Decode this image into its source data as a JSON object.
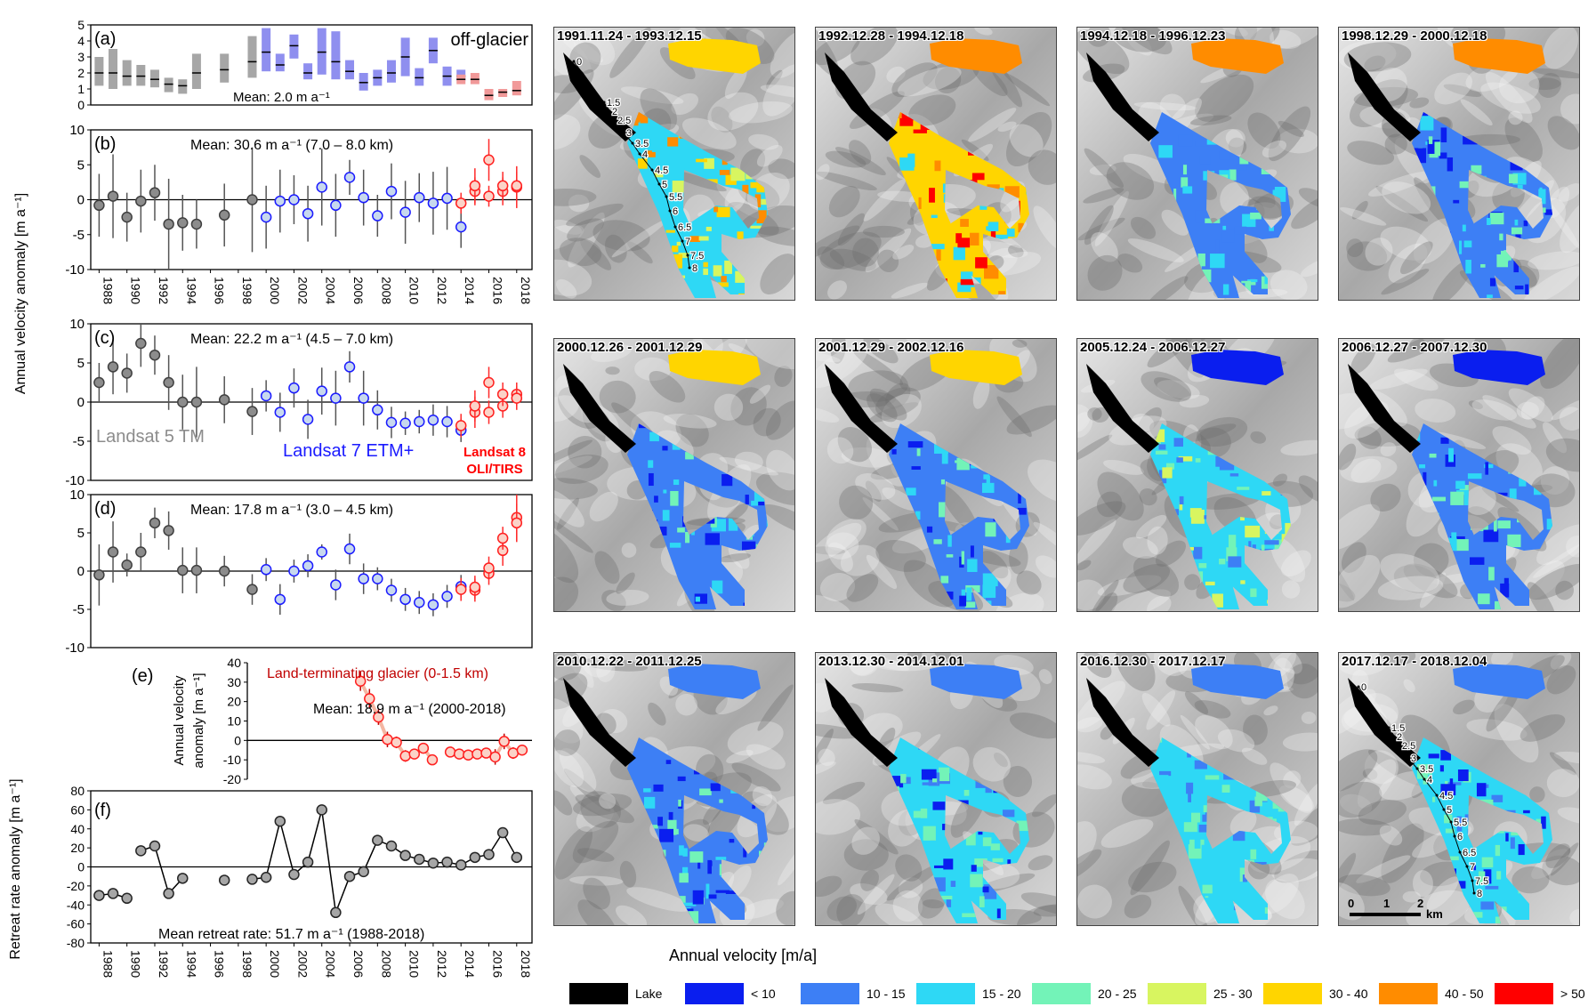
{
  "panels": [
    {
      "id": "a",
      "label": "(a)",
      "annotation": "off-glacier",
      "mean_text": "Mean: 2.0 m a⁻¹",
      "chart_data": {
        "type": "box",
        "yticks": [
          "5",
          "4",
          "3",
          "2",
          "1",
          "0"
        ],
        "ylim": [
          0,
          5
        ],
        "series": [
          {
            "name": "Landsat 5 TM",
            "color": "#a6a6a6",
            "x": [
              1988,
              1989,
              1990,
              1991,
              1992,
              1993,
              1994,
              1995,
              1997,
              1999
            ],
            "low": [
              1.2,
              1.0,
              1.2,
              1.2,
              1.1,
              0.8,
              0.7,
              1.0,
              1.4,
              1.7
            ],
            "high": [
              3.0,
              3.5,
              2.8,
              2.5,
              2.2,
              1.7,
              1.6,
              3.2,
              3.2,
              4.3
            ],
            "mid": [
              2.0,
              2.0,
              1.8,
              1.8,
              1.6,
              1.3,
              1.2,
              2.0,
              2.2,
              2.7
            ]
          },
          {
            "name": "Landsat 7 ETM+",
            "color": "#8f8fef",
            "x": [
              2000,
              2001,
              2002,
              2003,
              2004,
              2005,
              2006,
              2007,
              2008,
              2009,
              2010,
              2011,
              2012,
              2013,
              2014
            ],
            "low": [
              2.1,
              2.1,
              2.9,
              1.6,
              1.9,
              1.6,
              1.6,
              0.9,
              1.2,
              1.4,
              1.8,
              1.2,
              2.6,
              1.2,
              1.5
            ],
            "high": [
              4.8,
              3.2,
              4.4,
              2.6,
              4.8,
              4.6,
              2.8,
              2.0,
              2.2,
              2.8,
              4.2,
              2.3,
              4.2,
              2.4,
              2.2
            ],
            "mid": [
              3.3,
              2.5,
              3.7,
              2.0,
              3.3,
              2.7,
              2.1,
              1.4,
              1.7,
              2.0,
              3.0,
              1.7,
              3.4,
              1.8,
              1.8
            ]
          },
          {
            "name": "Landsat 8 OLI/TIRS",
            "color": "#f19999",
            "x": [
              2014,
              2015,
              2016,
              2017,
              2018
            ],
            "low": [
              1.3,
              1.3,
              0.3,
              0.5,
              0.6
            ],
            "high": [
              1.9,
              2.0,
              1.0,
              1.0,
              1.5
            ],
            "mid": [
              1.6,
              1.6,
              0.6,
              0.8,
              0.9
            ]
          }
        ]
      }
    },
    {
      "id": "b",
      "label": "(b)",
      "mean_text": "Mean: 30.6 m a⁻¹ (7.0 – 8.0 km)",
      "chart_data": {
        "type": "scatter",
        "yticks": [
          "10",
          "5",
          "0",
          "-5",
          "-10"
        ],
        "ylim": [
          -10,
          10
        ],
        "xticks": [
          "1988",
          "1990",
          "1992",
          "1994",
          "1996",
          "1998",
          "2000",
          "2002",
          "2004",
          "2006",
          "2008",
          "2010",
          "2012",
          "2014",
          "2016",
          "2018"
        ],
        "series": [
          {
            "name": "Landsat 5 TM",
            "color": "#808080",
            "x": [
              1988,
              1989,
              1990,
              1991,
              1992,
              1993,
              1994,
              1995,
              1997,
              1999
            ],
            "y": [
              -0.8,
              0.5,
              -2.5,
              -0.2,
              1.0,
              -3.5,
              -3.3,
              -3.5,
              -2.2,
              0.0
            ],
            "err": [
              4.5,
              6.0,
              3.5,
              4.5,
              4.0,
              6.5,
              4.0,
              3.5,
              4.5,
              7.5
            ]
          },
          {
            "name": "Landsat 7 ETM+",
            "color": "#9dc3e6",
            "x": [
              2000,
              2001,
              2002,
              2003,
              2004,
              2005,
              2006,
              2007,
              2008,
              2009,
              2010,
              2011,
              2012,
              2013,
              2014
            ],
            "y": [
              -2.5,
              -0.2,
              0.0,
              -2.0,
              1.8,
              -0.8,
              3.2,
              0.3,
              -2.3,
              1.2,
              -1.8,
              0.3,
              -0.5,
              0.2,
              -3.9
            ],
            "err": [
              4.5,
              4.5,
              3.5,
              4.0,
              5.5,
              4.5,
              2.5,
              4.0,
              3.0,
              4.0,
              4.5,
              3.5,
              4.5,
              4.5,
              3.0
            ]
          },
          {
            "name": "Landsat 8 OLI/TIRS",
            "color": "#ff7575",
            "x": [
              2014,
              2015,
              2016,
              2017,
              2018
            ],
            "y": [
              -0.5,
              1.2,
              0.5,
              1.2,
              1.8
            ],
            "err": [
              1.5,
              2.0,
              1.5,
              2.0,
              3.0
            ]
          },
          {
            "name": "Landsat 7 ETM+ (2015-2018)",
            "color": "#9dc3e6",
            "x": [
              2015,
              2016,
              2017,
              2018
            ],
            "y": [
              2.0,
              5.7,
              2.0,
              2.0
            ],
            "err": [
              2.5,
              3.0,
              2.0,
              2.0
            ]
          }
        ]
      }
    },
    {
      "id": "c",
      "label": "(c)",
      "mean_text": "Mean: 22.2 m a⁻¹ (4.5 – 7.0 km)",
      "sensor_labels": [
        "Landsat 5 TM",
        "Landsat 7 ETM+",
        "Landsat 8",
        "OLI/TIRS"
      ],
      "chart_data": {
        "type": "scatter",
        "yticks": [
          "10",
          "5",
          "0",
          "-5",
          "-10"
        ],
        "ylim": [
          -10,
          10
        ],
        "series": [
          {
            "name": "Landsat 5 TM",
            "color": "#808080",
            "x": [
              1988,
              1989,
              1990,
              1991,
              1992,
              1993,
              1994,
              1995,
              1997,
              1999
            ],
            "y": [
              2.5,
              4.5,
              3.7,
              7.5,
              6.0,
              2.5,
              0.0,
              0.0,
              0.3,
              -1.2
            ],
            "err": [
              2.5,
              3.5,
              2.5,
              3.0,
              2.5,
              3.5,
              3.5,
              4.5,
              3.0,
              3.0
            ]
          },
          {
            "name": "Landsat 7 ETM+",
            "color": "#9dc3e6",
            "x": [
              2000,
              2001,
              2002,
              2003,
              2004,
              2005,
              2006,
              2007,
              2008,
              2009,
              2010,
              2011,
              2012,
              2013,
              2014
            ],
            "y": [
              0.8,
              -1.3,
              1.8,
              -2.2,
              1.4,
              0.5,
              4.5,
              0.5,
              -1.0,
              -2.6,
              -2.7,
              -2.5,
              -2.3,
              -2.5,
              -3.6
            ],
            "err": [
              2.0,
              2.5,
              2.5,
              2.5,
              3.0,
              3.5,
              2.0,
              3.5,
              2.5,
              2.0,
              1.5,
              1.5,
              2.0,
              2.0,
              1.5
            ]
          },
          {
            "name": "Landsat 8 OLI/TIRS",
            "color": "#ff7575",
            "x": [
              2014,
              2015,
              2016,
              2017,
              2018
            ],
            "y": [
              -3.0,
              -1.3,
              -1.3,
              -0.5,
              1.0
            ],
            "err": [
              1.5,
              2.0,
              1.5,
              1.5,
              1.5
            ]
          },
          {
            "name": "Landsat 7 ETM+ (2015-2018)",
            "color": "#9dc3e6",
            "x": [
              2015,
              2016,
              2017,
              2018
            ],
            "y": [
              -0.5,
              2.5,
              1.0,
              0.5
            ],
            "err": [
              2.0,
              2.0,
              1.5,
              1.5
            ]
          }
        ]
      }
    },
    {
      "id": "d",
      "label": "(d)",
      "mean_text": "Mean: 17.8 m a⁻¹ (3.0 – 4.5 km)",
      "chart_data": {
        "type": "scatter",
        "yticks": [
          "10",
          "5",
          "0",
          "-5",
          "-10"
        ],
        "ylim": [
          -10,
          10
        ],
        "series": [
          {
            "name": "Landsat 5 TM",
            "color": "#808080",
            "x": [
              1988,
              1989,
              1990,
              1991,
              1992,
              1993,
              1994,
              1995,
              1997,
              1999
            ],
            "y": [
              -0.5,
              2.5,
              0.8,
              2.5,
              6.3,
              5.3,
              0.1,
              0.1,
              0.0,
              -2.4
            ],
            "err": [
              4.0,
              4.0,
              1.5,
              2.5,
              2.0,
              2.5,
              3.0,
              3.0,
              2.0,
              2.0
            ]
          },
          {
            "name": "Landsat 7 ETM+",
            "color": "#9dc3e6",
            "x": [
              2000,
              2001,
              2002,
              2003,
              2004,
              2005,
              2006,
              2007,
              2008,
              2009,
              2010,
              2011,
              2012,
              2013,
              2014
            ],
            "y": [
              0.2,
              -3.7,
              0.0,
              0.7,
              2.5,
              -1.8,
              2.9,
              -1.0,
              -1.0,
              -2.5,
              -3.7,
              -4.1,
              -4.4,
              -3.3,
              -2.0
            ],
            "err": [
              1.5,
              2.0,
              1.5,
              1.5,
              1.0,
              2.0,
              2.0,
              2.0,
              1.5,
              1.5,
              1.5,
              1.5,
              1.5,
              1.5,
              1.5
            ]
          },
          {
            "name": "Landsat 8 OLI/TIRS",
            "color": "#ff7575",
            "x": [
              2014,
              2015,
              2016,
              2017,
              2018
            ],
            "y": [
              -2.4,
              -2.5,
              -0.3,
              2.7,
              7.0
            ],
            "err": [
              1.5,
              1.5,
              1.5,
              2.0,
              3.0
            ]
          },
          {
            "name": "Landsat 7 ETM+ (2015-2018)",
            "color": "#9dc3e6",
            "x": [
              2015,
              2016,
              2017,
              2018
            ],
            "y": [
              -2.1,
              0.4,
              4.3,
              6.3
            ],
            "err": [
              1.5,
              1.5,
              1.5,
              2.5
            ]
          }
        ]
      }
    },
    {
      "id": "e",
      "label": "(e)",
      "annotation": "Land-terminating glacier (0-1.5 km)",
      "mean_text": "Mean:  18.9 m a⁻¹ (2000-2018)",
      "ylabel": "Annual velocity anomaly [m a⁻¹]",
      "chart_data": {
        "type": "line",
        "yticks": [
          "40",
          "30",
          "20",
          "10",
          "0",
          "-10",
          "-20"
        ],
        "ylim": [
          -20,
          40
        ],
        "series": [
          {
            "name": "Land-terminating glacier (0-1.5 km)",
            "color": "#ff5050",
            "x": [
              2000,
              2001,
              2002,
              2003,
              2004,
              2005,
              2006,
              2007,
              2008,
              2010,
              2011,
              2012,
              2013,
              2014,
              2015,
              2016,
              2017,
              2018
            ],
            "y": [
              30.5,
              21.5,
              12.0,
              0.5,
              -1.0,
              -8.0,
              -7.0,
              -4.0,
              -10.0,
              -6.0,
              -7.0,
              -7.5,
              -7.0,
              -6.5,
              -8.5,
              -0.5,
              -6.5,
              -5.0
            ],
            "err": [
              5,
              5,
              4,
              4,
              3,
              3,
              2,
              2,
              2,
              2,
              2,
              2,
              2,
              2,
              4,
              4,
              3,
              2
            ]
          }
        ]
      }
    },
    {
      "id": "f",
      "label": "(f)",
      "mean_text": "Mean retreat rate: 51.7 m a⁻¹ (1988-2018)",
      "ylabel": "Retreat rate anomaly [m a⁻¹]",
      "chart_data": {
        "type": "line",
        "yticks": [
          "80",
          "60",
          "40",
          "20",
          "0",
          "-20",
          "-40",
          "-60",
          "-80"
        ],
        "ylim": [
          -80,
          80
        ],
        "xticks": [
          "1988",
          "1990",
          "1992",
          "1994",
          "1996",
          "1998",
          "2000",
          "2002",
          "2004",
          "2006",
          "2008",
          "2010",
          "2012",
          "2014",
          "2016",
          "2018"
        ],
        "series": [
          {
            "name": "Retreat rate anomaly",
            "color": "#808080",
            "segments": [
              {
                "x": [
                  1988,
                  1989,
                  1990
                ],
                "y": [
                  -30,
                  -28,
                  -33
                ]
              },
              {
                "x": [
                  1991,
                  1992,
                  1993,
                  1994
                ],
                "y": [
                  17,
                  22,
                  -28,
                  -12
                ]
              },
              {
                "x": [
                  1997
                ],
                "y": [
                  -14
                ]
              },
              {
                "x": [
                  1999,
                  2000,
                  2001,
                  2002,
                  2003,
                  2004,
                  2005,
                  2006,
                  2007,
                  2008,
                  2009,
                  2010,
                  2011,
                  2012,
                  2013,
                  2014,
                  2015,
                  2016,
                  2017,
                  2018
                ],
                "y": [
                  -13,
                  -11,
                  48,
                  -8,
                  5,
                  60,
                  -48,
                  -10,
                  -5,
                  28,
                  22,
                  12,
                  8,
                  4,
                  5,
                  2,
                  10,
                  13,
                  36,
                  10
                ]
              }
            ]
          }
        ]
      }
    }
  ],
  "shared_ylabel": "Annual velocity anomaly [m a⁻¹]",
  "maps": [
    {
      "date": "1991.11.24 - 1993.12.15",
      "profile": true
    },
    {
      "date": "1992.12.28 - 1994.12.18"
    },
    {
      "date": "1994.12.18 - 1996.12.23"
    },
    {
      "date": "1998.12.29 - 2000.12.18"
    },
    {
      "date": "2000.12.26 - 2001.12.29"
    },
    {
      "date": "2001.12.29 - 2002.12.16"
    },
    {
      "date": "2005.12.24 - 2006.12.27"
    },
    {
      "date": "2006.12.27 - 2007.12.30"
    },
    {
      "date": "2010.12.22 - 2011.12.25"
    },
    {
      "date": "2013.12.30 - 2014.12.01"
    },
    {
      "date": "2016.12.30 - 2017.12.17"
    },
    {
      "date": "2017.12.17 - 2018.12.04",
      "profile": true,
      "scalebar": true
    }
  ],
  "map_profile_labels": [
    "0",
    "1.5",
    "2",
    "2.5",
    "3",
    "3.5",
    "4",
    "4.5",
    "5",
    "5.5",
    "6",
    "6.5",
    "7",
    "7.5",
    "8"
  ],
  "scalebar_labels": [
    "0",
    "1",
    "2",
    "km"
  ],
  "map_xlabel": "Annual velocity [m/a]",
  "legend": [
    {
      "label": "Lake",
      "color": "#000000"
    },
    {
      "label": "< 10",
      "color": "#0a1eef"
    },
    {
      "label": "10 - 15",
      "color": "#3d7ff5"
    },
    {
      "label": "15 - 20",
      "color": "#2ed8f5"
    },
    {
      "label": "20 - 25",
      "color": "#73f3b8"
    },
    {
      "label": "25 - 30",
      "color": "#d8f560"
    },
    {
      "label": "30 - 40",
      "color": "#ffd500"
    },
    {
      "label": "40 - 50",
      "color": "#ff8c00"
    },
    {
      "label": "> 50",
      "color": "#ff0000"
    }
  ]
}
